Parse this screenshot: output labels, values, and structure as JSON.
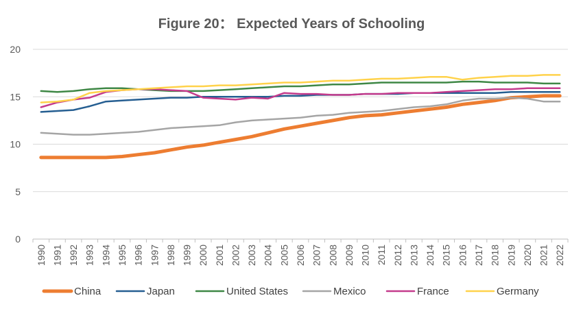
{
  "chart_data": {
    "type": "line",
    "title": "Figure 20： Expected Years of Schooling",
    "xlabel": "",
    "ylabel": "",
    "ylim": [
      0,
      20
    ],
    "yticks": [
      0,
      5,
      10,
      15,
      20
    ],
    "grid": true,
    "legend_position": "bottom",
    "x": [
      "1990",
      "1991",
      "1992",
      "1993",
      "1994",
      "1995",
      "1996",
      "1997",
      "1998",
      "1999",
      "2000",
      "2001",
      "2002",
      "2003",
      "2004",
      "2005",
      "2006",
      "2007",
      "2008",
      "2009",
      "2010",
      "2011",
      "2012",
      "2013",
      "2014",
      "2015",
      "2016",
      "2017",
      "2018",
      "2019",
      "2020",
      "2021",
      "2022"
    ],
    "series": [
      {
        "name": "China",
        "color": "#ED7D31",
        "width": 5,
        "values": [
          8.6,
          8.6,
          8.6,
          8.6,
          8.6,
          8.7,
          8.9,
          9.1,
          9.4,
          9.7,
          9.9,
          10.2,
          10.5,
          10.8,
          11.2,
          11.6,
          11.9,
          12.2,
          12.5,
          12.8,
          13.0,
          13.1,
          13.3,
          13.5,
          13.7,
          13.9,
          14.2,
          14.4,
          14.6,
          14.9,
          15.0,
          15.1,
          15.1
        ]
      },
      {
        "name": "Japan",
        "color": "#255E91",
        "width": 2.5,
        "values": [
          13.4,
          13.5,
          13.6,
          14.0,
          14.5,
          14.6,
          14.7,
          14.8,
          14.9,
          14.9,
          15.0,
          15.0,
          15.0,
          15.0,
          15.0,
          15.1,
          15.1,
          15.2,
          15.2,
          15.2,
          15.3,
          15.3,
          15.3,
          15.4,
          15.4,
          15.4,
          15.4,
          15.4,
          15.4,
          15.5,
          15.5,
          15.5,
          15.5
        ]
      },
      {
        "name": "United States",
        "color": "#3E8745",
        "width": 2.5,
        "values": [
          15.6,
          15.5,
          15.6,
          15.8,
          15.9,
          15.9,
          15.8,
          15.7,
          15.6,
          15.6,
          15.6,
          15.7,
          15.8,
          15.9,
          16.0,
          16.1,
          16.1,
          16.2,
          16.3,
          16.3,
          16.4,
          16.5,
          16.5,
          16.5,
          16.5,
          16.5,
          16.6,
          16.6,
          16.5,
          16.5,
          16.5,
          16.4,
          16.4
        ]
      },
      {
        "name": "Mexico",
        "color": "#A5A5A5",
        "width": 2.5,
        "values": [
          11.2,
          11.1,
          11.0,
          11.0,
          11.1,
          11.2,
          11.3,
          11.5,
          11.7,
          11.8,
          11.9,
          12.0,
          12.3,
          12.5,
          12.6,
          12.7,
          12.8,
          13.0,
          13.1,
          13.3,
          13.4,
          13.5,
          13.7,
          13.9,
          14.0,
          14.2,
          14.6,
          14.8,
          14.8,
          14.9,
          14.8,
          14.5,
          14.5
        ]
      },
      {
        "name": "France",
        "color": "#C43B8C",
        "width": 2.5,
        "values": [
          13.9,
          14.4,
          14.7,
          14.9,
          15.5,
          15.7,
          15.8,
          15.8,
          15.7,
          15.6,
          14.9,
          14.8,
          14.7,
          14.9,
          14.8,
          15.4,
          15.3,
          15.3,
          15.2,
          15.2,
          15.3,
          15.3,
          15.4,
          15.4,
          15.4,
          15.5,
          15.6,
          15.7,
          15.8,
          15.8,
          15.9,
          15.9,
          15.9
        ]
      },
      {
        "name": "Germany",
        "color": "#FFD24A",
        "width": 2.5,
        "values": [
          14.4,
          14.5,
          14.7,
          15.4,
          15.6,
          15.7,
          15.8,
          15.9,
          16.0,
          16.1,
          16.1,
          16.2,
          16.2,
          16.3,
          16.4,
          16.5,
          16.5,
          16.6,
          16.7,
          16.7,
          16.8,
          16.9,
          16.9,
          17.0,
          17.1,
          17.1,
          16.8,
          17.0,
          17.1,
          17.2,
          17.2,
          17.3,
          17.3
        ]
      }
    ]
  }
}
